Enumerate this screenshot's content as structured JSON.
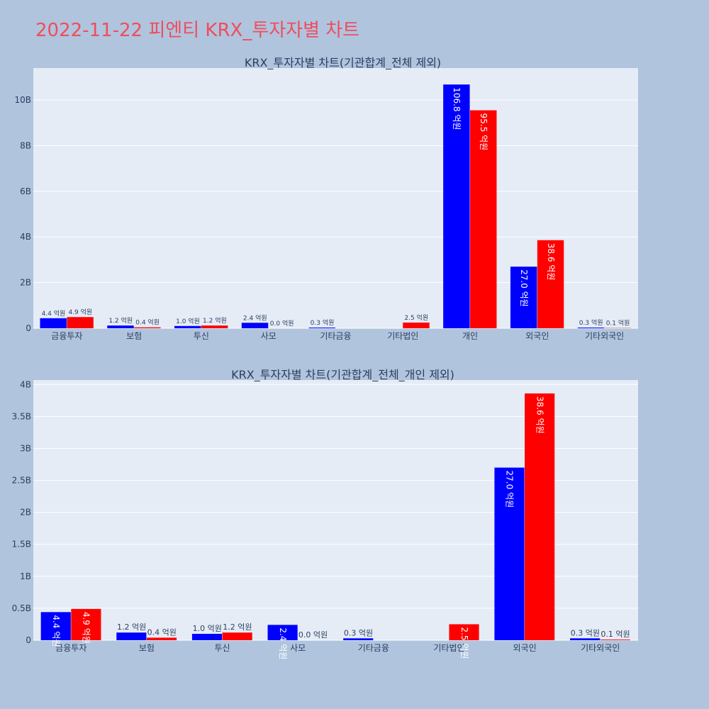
{
  "page": {
    "title": "2022-11-22 피엔티 KRX_투자자별 차트"
  },
  "colors": {
    "background": "#b0c4de",
    "plot_bg": "#e5ecf6",
    "buy": "#0000ff",
    "sell": "#ff0000",
    "title": "#ef4d5d"
  },
  "chart_data": [
    {
      "type": "bar",
      "title": "KRX_투자자별 차트(기관합계_전체 제외)",
      "categories": [
        "금융투자",
        "보험",
        "투신",
        "사모",
        "기타금융",
        "기타법인",
        "개인",
        "외국인",
        "기타외국인"
      ],
      "series": [
        {
          "color": "#0000ff",
          "values": [
            440000000,
            120000000,
            100000000,
            240000000,
            30000000,
            0,
            10680000000,
            2700000000,
            30000000
          ],
          "labels": [
            "4.4 억원",
            "1.2 억원",
            "1.0 억원",
            "2.4 억원",
            "0.3 억원",
            "",
            "106.8 억원",
            "27.0 억원",
            "0.3 억원"
          ]
        },
        {
          "color": "#ff0000",
          "values": [
            490000000,
            40000000,
            120000000,
            0,
            0,
            250000000,
            9550000000,
            3860000000,
            10000000
          ],
          "labels": [
            "4.9 억원",
            "0.4 억원",
            "1.2 억원",
            "0.0 억원",
            "",
            "2.5 억원",
            "95.5 억원",
            "38.6 억원",
            "0.1 억원"
          ]
        }
      ],
      "yticks": [
        0,
        2000000000,
        4000000000,
        6000000000,
        8000000000,
        10000000000
      ],
      "ytick_labels": [
        "0",
        "2B",
        "4B",
        "6B",
        "8B",
        "10B"
      ],
      "ylim": [
        0,
        11400000000
      ],
      "grid": true
    },
    {
      "type": "bar",
      "title": "KRX_투자자별 차트(기관합계_전체_개인 제외)",
      "categories": [
        "금융투자",
        "보험",
        "투신",
        "사모",
        "기타금융",
        "기타법인",
        "외국인",
        "기타외국인"
      ],
      "series": [
        {
          "color": "#0000ff",
          "values": [
            440000000,
            120000000,
            100000000,
            240000000,
            30000000,
            0,
            2700000000,
            30000000
          ],
          "labels": [
            "4.4 억원",
            "1.2 억원",
            "1.0 억원",
            "2.4 억원",
            "0.3 억원",
            "",
            "27.0 억원",
            "0.3 억원"
          ]
        },
        {
          "color": "#ff0000",
          "values": [
            490000000,
            40000000,
            120000000,
            0,
            0,
            250000000,
            3860000000,
            10000000
          ],
          "labels": [
            "4.9 억원",
            "0.4 억원",
            "1.2 억원",
            "0.0 억원",
            "",
            "2.5 억원",
            "38.6 억원",
            "0.1 억원"
          ]
        }
      ],
      "yticks": [
        0,
        500000000,
        1000000000,
        1500000000,
        2000000000,
        2500000000,
        3000000000,
        3500000000,
        4000000000
      ],
      "ytick_labels": [
        "0",
        "0.5B",
        "1B",
        "1.5B",
        "2B",
        "2.5B",
        "3B",
        "3.5B",
        "4B"
      ],
      "ylim": [
        0,
        4070000000
      ],
      "grid": true
    }
  ]
}
